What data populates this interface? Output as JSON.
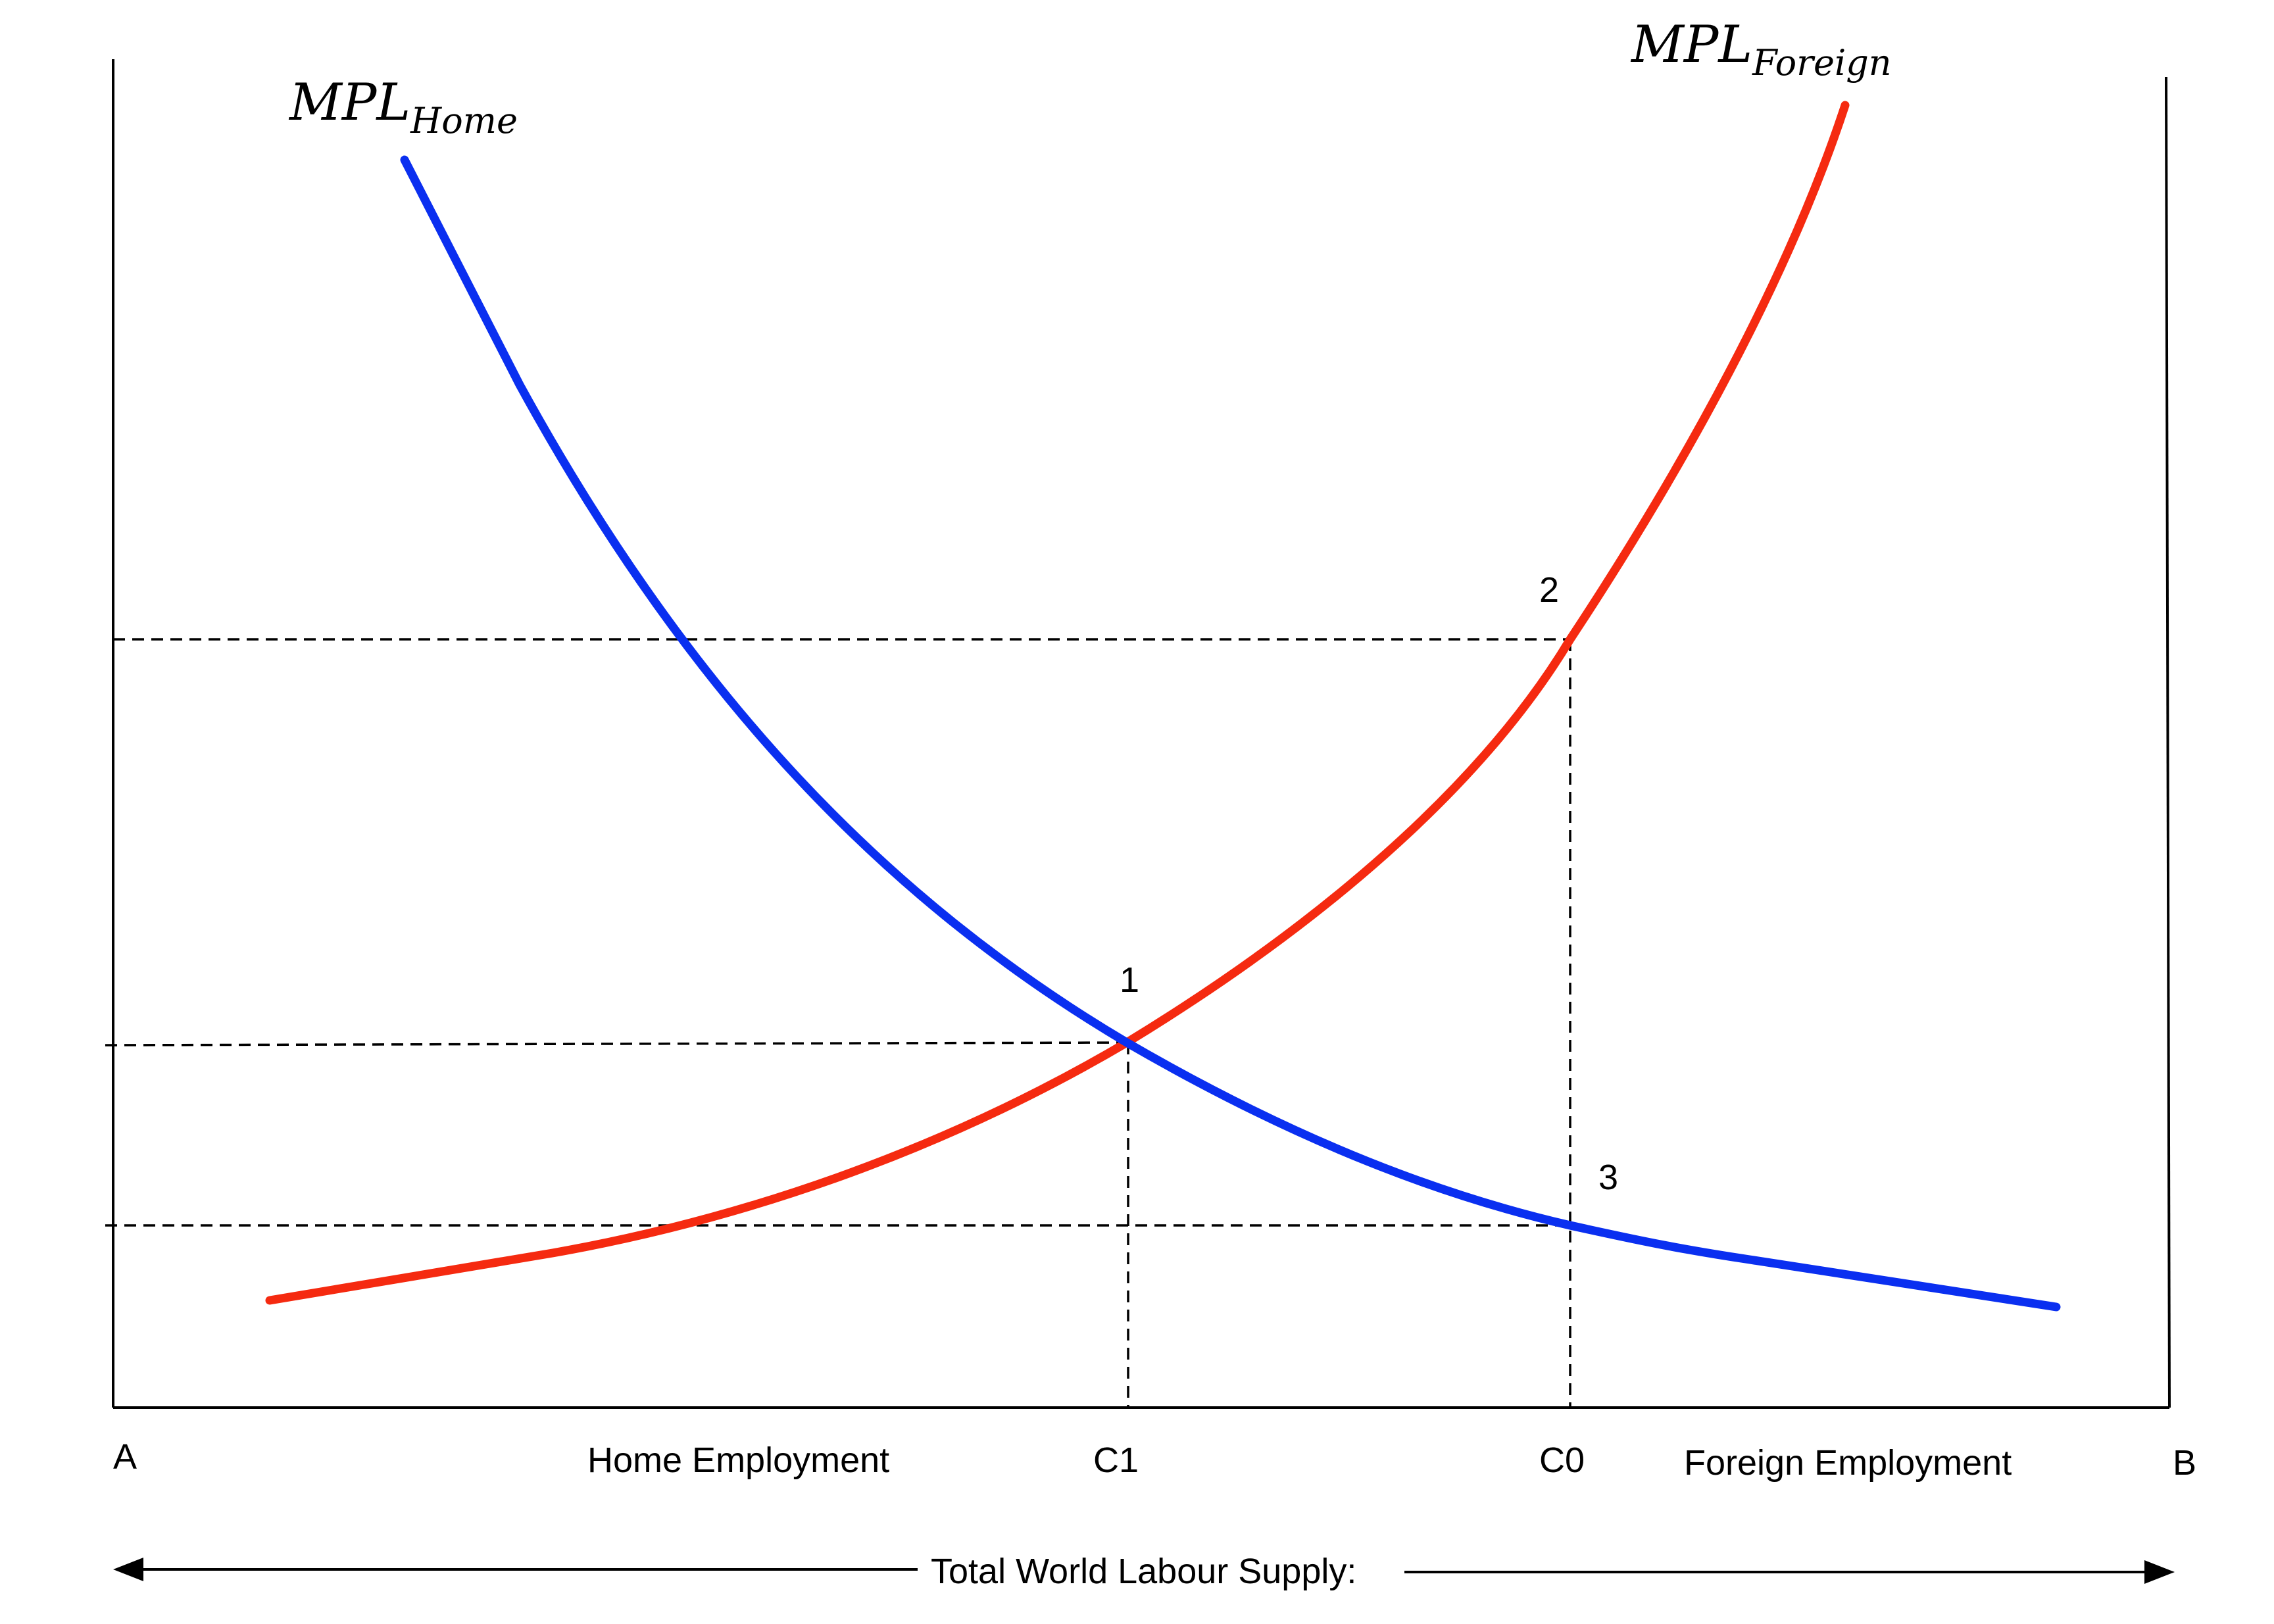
{
  "curves": {
    "home": {
      "label_main": "MPL",
      "label_sub": "Home",
      "color": "#0a2ff0"
    },
    "foreign": {
      "label_main": "MPL",
      "label_sub": "Foreign",
      "color": "#f52a10"
    }
  },
  "points": {
    "p1": "1",
    "p2": "2",
    "p3": "3"
  },
  "x_labels": {
    "left_origin": "A",
    "right_origin": "B",
    "home_employment": "Home Employment",
    "c1": "C1",
    "c0": "C0",
    "foreign_employment": "Foreign Employment"
  },
  "total_label": "Total World Labour Supply:"
}
